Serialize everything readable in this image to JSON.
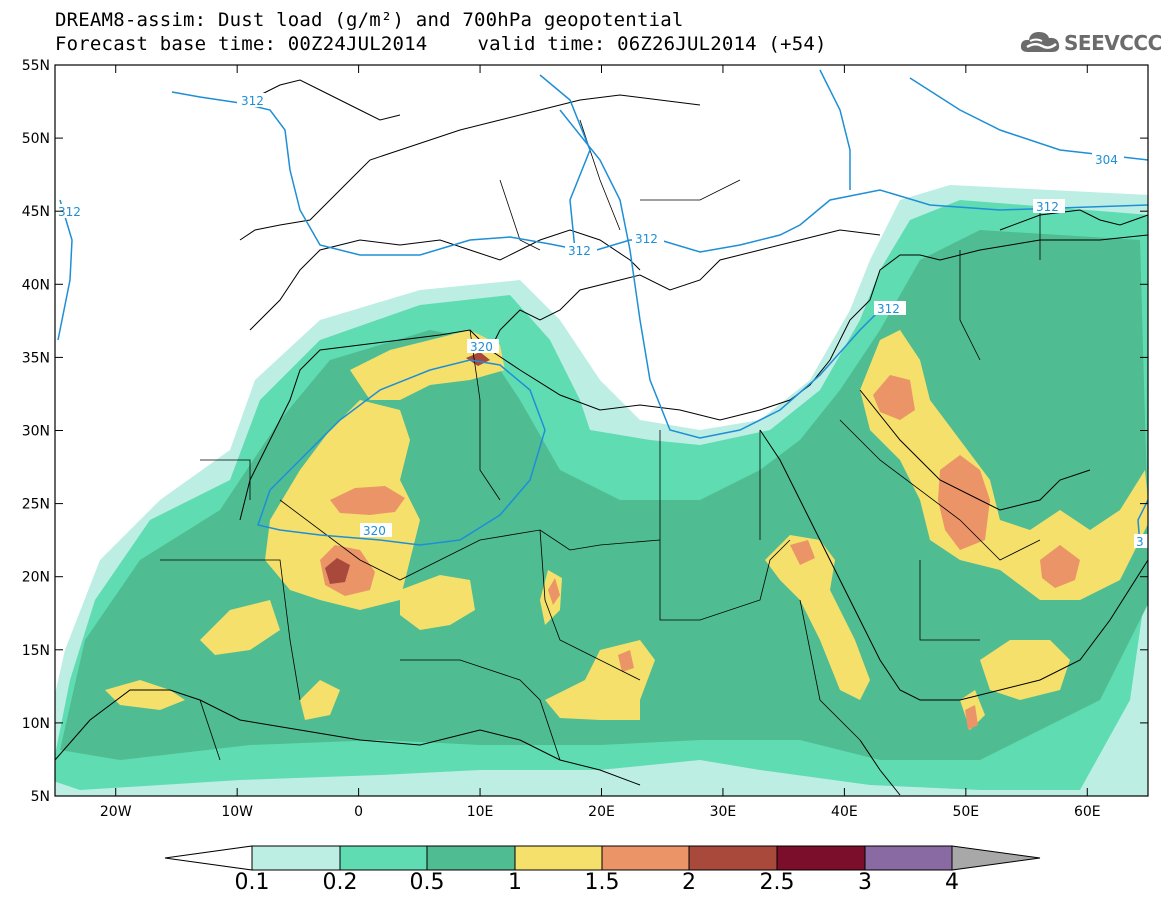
{
  "title_line1": "DREAM8-assim: Dust load (g/m²) and 700hPa geopotential",
  "title_line2_left": "Forecast base time: 00Z24JUL2014",
  "title_line2_right": "valid time: 06Z26JUL2014 (+54)",
  "logo_text": "SEEVCCC",
  "logo_icon": "cloud-icon",
  "map": {
    "lon_range": [
      -25,
      65
    ],
    "lat_range": [
      5,
      55
    ],
    "lat_ticks": [
      "55N",
      "50N",
      "45N",
      "40N",
      "35N",
      "30N",
      "25N",
      "20N",
      "15N",
      "10N",
      "5N"
    ],
    "lon_ticks": [
      "20W",
      "10W",
      "0",
      "10E",
      "20E",
      "30E",
      "40E",
      "50E",
      "60E"
    ],
    "contour_labels": [
      "312",
      "312",
      "312",
      "312",
      "312",
      "312",
      "304",
      "320",
      "320",
      "3"
    ],
    "contour_color": "#1e8fd6"
  },
  "colorbar": {
    "labels": [
      "0.1",
      "0.2",
      "0.5",
      "1",
      "1.5",
      "2",
      "2.5",
      "3",
      "4"
    ],
    "colors": [
      "#bdeee3",
      "#5fdcb2",
      "#4fbc92",
      "#f5e06c",
      "#eb9468",
      "#a8493c",
      "#7b0e2a",
      "#8a6aa2",
      "#a8a8a8"
    ]
  }
}
